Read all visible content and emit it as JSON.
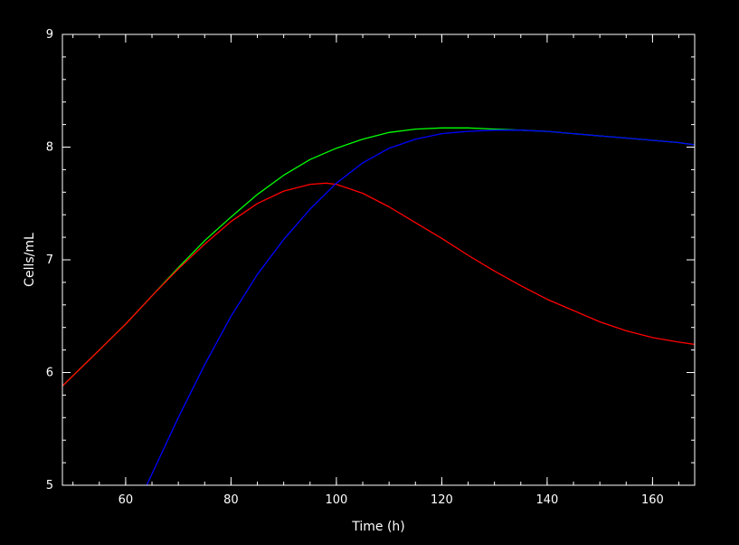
{
  "chart_data": {
    "type": "line",
    "title": "",
    "xlabel": "Time (h)",
    "ylabel": "Cells/mL",
    "xlim": [
      48,
      168
    ],
    "ylim": [
      5,
      9
    ],
    "x_ticks": [
      60,
      80,
      100,
      120,
      140,
      160
    ],
    "y_ticks": [
      5,
      6,
      7,
      8,
      9
    ],
    "x_minor_step": 5,
    "y_minor_step": 0.2,
    "grid": false,
    "background": "#000000",
    "axis_color": "#ffffff",
    "series": [
      {
        "color": "#00ff00",
        "x": [
          48,
          55,
          60,
          65,
          70,
          75,
          80,
          85,
          90,
          95,
          100,
          105,
          110,
          115,
          120,
          125,
          130,
          135,
          140,
          145,
          150,
          155,
          160,
          165,
          168
        ],
        "y": [
          5.88,
          6.2,
          6.43,
          6.68,
          6.93,
          7.17,
          7.38,
          7.58,
          7.75,
          7.89,
          7.99,
          8.07,
          8.13,
          8.16,
          8.17,
          8.17,
          8.16,
          8.15,
          8.14,
          8.12,
          8.1,
          8.08,
          8.06,
          8.04,
          8.02
        ]
      },
      {
        "color": "#ff0000",
        "x": [
          48,
          55,
          60,
          65,
          70,
          75,
          80,
          85,
          90,
          95,
          98,
          100,
          105,
          110,
          115,
          120,
          125,
          130,
          135,
          140,
          145,
          150,
          155,
          160,
          165,
          168
        ],
        "y": [
          5.88,
          6.2,
          6.43,
          6.68,
          6.92,
          7.14,
          7.34,
          7.5,
          7.61,
          7.67,
          7.68,
          7.67,
          7.59,
          7.47,
          7.33,
          7.19,
          7.04,
          6.9,
          6.77,
          6.65,
          6.55,
          6.45,
          6.37,
          6.31,
          6.27,
          6.25
        ]
      },
      {
        "color": "#0000ff",
        "x": [
          64,
          70,
          75,
          80,
          85,
          90,
          95,
          100,
          105,
          110,
          115,
          120,
          125,
          130,
          135,
          140,
          145,
          150,
          155,
          160,
          165,
          168
        ],
        "y": [
          5.0,
          5.6,
          6.07,
          6.5,
          6.87,
          7.18,
          7.45,
          7.68,
          7.86,
          7.99,
          8.07,
          8.12,
          8.14,
          8.15,
          8.15,
          8.14,
          8.12,
          8.1,
          8.08,
          8.06,
          8.04,
          8.02
        ]
      }
    ]
  }
}
